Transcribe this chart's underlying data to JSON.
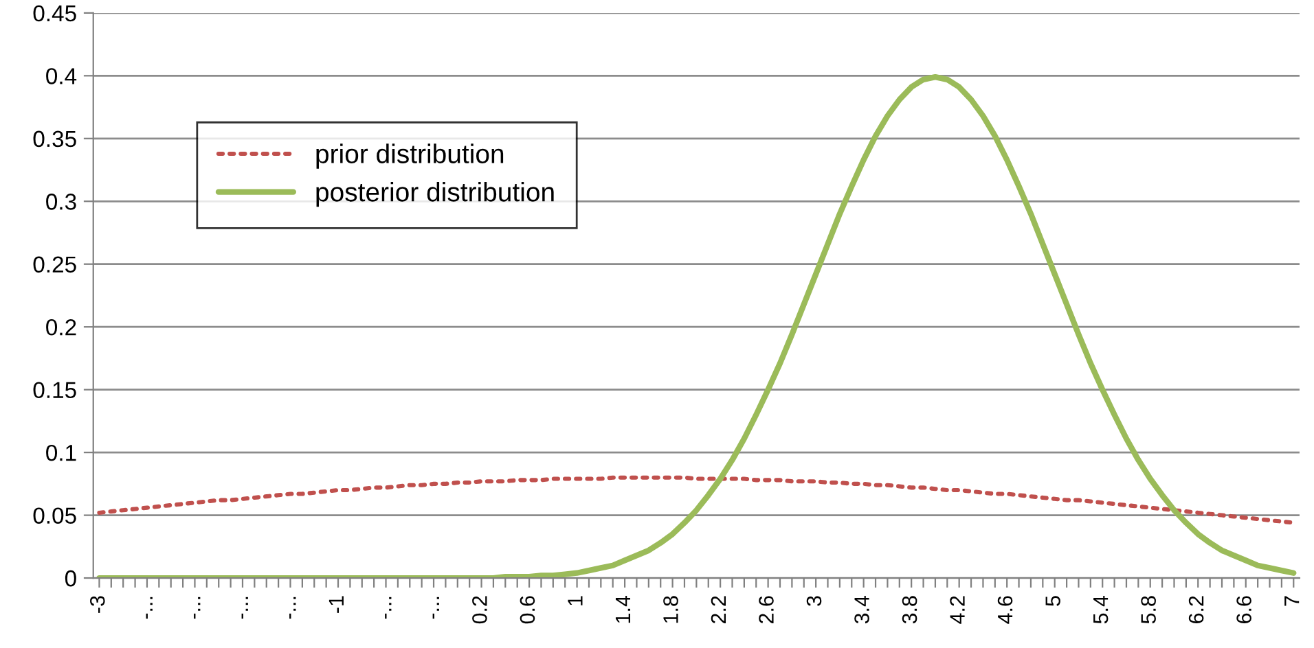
{
  "chart_data": {
    "type": "line",
    "categories": [
      "-3",
      null,
      null,
      null,
      "-...",
      null,
      null,
      null,
      "-...",
      null,
      null,
      null,
      "-...",
      null,
      null,
      null,
      "-...",
      null,
      null,
      null,
      "-1",
      null,
      null,
      null,
      "-...",
      null,
      null,
      null,
      "-...",
      null,
      null,
      null,
      "0.2",
      null,
      null,
      null,
      "0.6",
      null,
      null,
      null,
      "1",
      null,
      null,
      null,
      "1.4",
      null,
      null,
      null,
      "1.8",
      null,
      null,
      null,
      "2.2",
      null,
      null,
      null,
      "2.6",
      null,
      null,
      null,
      "3",
      null,
      null,
      null,
      "3.4",
      null,
      null,
      null,
      "3.8",
      null,
      null,
      null,
      "4.2",
      null,
      null,
      null,
      "4.6",
      null,
      null,
      null,
      "5",
      null,
      null,
      null,
      "5.4",
      null,
      null,
      null,
      "5.8",
      null,
      null,
      null,
      "6.2",
      null,
      null,
      null,
      "6.6",
      null,
      null,
      null,
      "7"
    ],
    "series": [
      {
        "name": "prior distribution",
        "color": "#c0504d",
        "line_style": "dotted",
        "values": [
          0.052,
          0.053,
          0.054,
          0.055,
          0.056,
          0.057,
          0.058,
          0.059,
          0.06,
          0.061,
          0.062,
          0.062,
          0.063,
          0.064,
          0.065,
          0.066,
          0.067,
          0.067,
          0.068,
          0.069,
          0.07,
          0.07,
          0.071,
          0.072,
          0.072,
          0.073,
          0.074,
          0.074,
          0.075,
          0.075,
          0.076,
          0.076,
          0.077,
          0.077,
          0.077,
          0.078,
          0.078,
          0.078,
          0.079,
          0.079,
          0.079,
          0.079,
          0.079,
          0.08,
          0.08,
          0.08,
          0.08,
          0.08,
          0.08,
          0.08,
          0.079,
          0.079,
          0.079,
          0.079,
          0.079,
          0.078,
          0.078,
          0.078,
          0.077,
          0.077,
          0.077,
          0.076,
          0.076,
          0.075,
          0.075,
          0.074,
          0.074,
          0.073,
          0.072,
          0.072,
          0.071,
          0.07,
          0.07,
          0.069,
          0.068,
          0.067,
          0.067,
          0.066,
          0.065,
          0.064,
          0.063,
          0.062,
          0.062,
          0.061,
          0.06,
          0.059,
          0.058,
          0.057,
          0.056,
          0.055,
          0.054,
          0.053,
          0.052,
          0.051,
          0.05,
          0.049,
          0.048,
          0.047,
          0.046,
          0.045,
          0.044
        ]
      },
      {
        "name": "posterior distribution",
        "color": "#9bbb59",
        "line_style": "solid",
        "values": [
          0,
          0,
          0,
          0,
          0,
          0,
          0,
          0,
          0,
          0,
          0,
          0,
          0,
          0,
          0,
          0,
          0,
          0,
          0,
          0,
          0,
          0,
          0,
          0,
          0,
          0,
          0,
          0,
          0,
          0,
          0,
          0,
          0,
          0,
          0.001,
          0.001,
          0.001,
          0.002,
          0.002,
          0.003,
          0.004,
          0.006,
          0.008,
          0.01,
          0.014,
          0.018,
          0.022,
          0.028,
          0.035,
          0.044,
          0.054,
          0.066,
          0.079,
          0.094,
          0.111,
          0.13,
          0.15,
          0.171,
          0.194,
          0.218,
          0.242,
          0.266,
          0.29,
          0.312,
          0.333,
          0.352,
          0.368,
          0.381,
          0.391,
          0.397,
          0.399,
          0.397,
          0.391,
          0.381,
          0.368,
          0.352,
          0.333,
          0.312,
          0.29,
          0.266,
          0.242,
          0.218,
          0.194,
          0.171,
          0.15,
          0.13,
          0.111,
          0.094,
          0.079,
          0.066,
          0.054,
          0.044,
          0.035,
          0.028,
          0.022,
          0.018,
          0.014,
          0.01,
          0.008,
          0.006,
          0.004
        ]
      }
    ],
    "ylim": [
      0,
      0.45
    ],
    "yticks": [
      0,
      0.05,
      0.1,
      0.15,
      0.2,
      0.25,
      0.3,
      0.35,
      0.4,
      0.45
    ],
    "grid": "y",
    "legend": "top left",
    "marker": "none"
  }
}
